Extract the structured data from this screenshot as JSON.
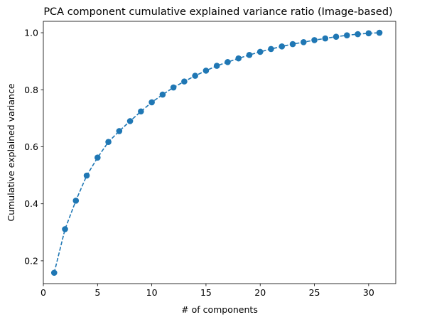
{
  "chart_data": {
    "type": "line",
    "title": "PCA component cumulative explained variance ratio (Image-based)",
    "xlabel": "# of components",
    "ylabel": "Cumulative explained variance",
    "xlim": [
      0,
      32.5
    ],
    "ylim": [
      0.12,
      1.04
    ],
    "xticks": [
      0,
      5,
      10,
      15,
      20,
      25,
      30
    ],
    "yticks": [
      0.2,
      0.4,
      0.6,
      0.8,
      1.0
    ],
    "ytick_labels": [
      "0.2",
      "0.4",
      "0.6",
      "0.8",
      "1.0"
    ],
    "grid": false,
    "line_style": "dashed",
    "marker": "circle",
    "color": "#1f77b4",
    "x": [
      1,
      2,
      3,
      4,
      5,
      6,
      7,
      8,
      9,
      10,
      11,
      12,
      13,
      14,
      15,
      16,
      17,
      18,
      19,
      20,
      21,
      22,
      23,
      24,
      25,
      26,
      27,
      28,
      29,
      30,
      31
    ],
    "y": [
      0.158,
      0.311,
      0.411,
      0.499,
      0.562,
      0.617,
      0.655,
      0.69,
      0.724,
      0.756,
      0.783,
      0.808,
      0.829,
      0.849,
      0.867,
      0.884,
      0.897,
      0.91,
      0.922,
      0.933,
      0.943,
      0.952,
      0.96,
      0.967,
      0.974,
      0.98,
      0.986,
      0.991,
      0.995,
      0.998,
      1.0
    ]
  }
}
